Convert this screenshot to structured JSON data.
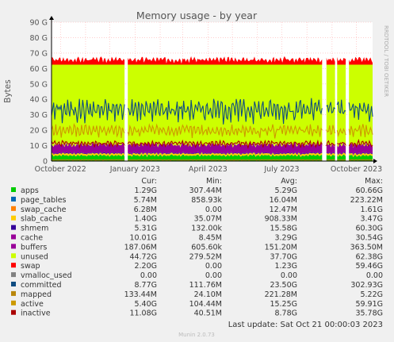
{
  "chart_data": {
    "type": "area",
    "title": "Memory usage - by year",
    "ylabel": "Bytes",
    "xlabel": "",
    "side_label": "RRDTOOL / TOBI OETIKER",
    "ylim": [
      0,
      90
    ],
    "y_unit": "G",
    "y_ticks": [
      "0",
      "10 G",
      "20 G",
      "30 G",
      "40 G",
      "50 G",
      "60 G",
      "70 G",
      "80 G",
      "90 G"
    ],
    "y_tick_values": [
      0,
      10,
      20,
      30,
      40,
      50,
      60,
      70,
      80,
      90
    ],
    "x_ticks": [
      "October 2022",
      "January 2023",
      "April 2023",
      "July 2023",
      "October 2023"
    ],
    "x_tick_dates": [
      "2022-10-01",
      "2023-01-01",
      "2023-04-01",
      "2023-07-01",
      "2023-10-01"
    ],
    "x_range": [
      "2022-09-20",
      "2023-10-21"
    ],
    "grid": true,
    "gaps": [
      [
        "2022-12-20",
        "2022-12-23"
      ],
      [
        "2023-08-20",
        "2023-08-24"
      ],
      [
        "2023-09-05",
        "2023-09-07"
      ],
      [
        "2023-09-19",
        "2023-09-21"
      ]
    ],
    "stacked_series": [
      {
        "name": "apps",
        "color": "#00cc00",
        "base": 2.5,
        "amp": 2.0
      },
      {
        "name": "page_tables",
        "color": "#0066b3",
        "base": 0.02,
        "amp": 0.02
      },
      {
        "name": "swap_cache",
        "color": "#ff8000",
        "base": 0.01,
        "amp": 0.01
      },
      {
        "name": "slab_cache",
        "color": "#ffcc00",
        "base": 0.9,
        "amp": 0.5
      },
      {
        "name": "shmem",
        "color": "#330099",
        "base": 0.3,
        "amp": 0.3
      },
      {
        "name": "cache",
        "color": "#990099",
        "base": 3.5,
        "amp": 3.0
      },
      {
        "name": "buffers",
        "color": "#ccff00",
        "base": 0.15,
        "amp": 0.1
      },
      {
        "name": "unused",
        "color": "#ccff00",
        "fill_to": 62.5
      },
      {
        "name": "swap",
        "color": "#ff0000",
        "base": 0.5,
        "amp": 5.0
      }
    ],
    "line_series": [
      {
        "name": "committed",
        "color": "#0f4c81",
        "base": 23.0,
        "amp": 18.0
      },
      {
        "name": "mapped",
        "color": "#b8860b",
        "base": 0.5,
        "amp": 0.4
      },
      {
        "name": "active",
        "color": "#cc9900",
        "base": 14.0,
        "amp": 10.0
      },
      {
        "name": "inactive",
        "color": "#aa0000",
        "base": 8.5,
        "amp": 5.0
      }
    ]
  },
  "legend": {
    "headers": [
      "Cur:",
      "Min:",
      "Avg:",
      "Max:"
    ],
    "rows": [
      {
        "name": "apps",
        "color": "#00cc00",
        "cur": "1.29G",
        "min": "307.44M",
        "avg": "5.29G",
        "max": "60.66G"
      },
      {
        "name": "page_tables",
        "color": "#0066b3",
        "cur": "5.74M",
        "min": "858.93k",
        "avg": "16.04M",
        "max": "223.22M"
      },
      {
        "name": "swap_cache",
        "color": "#ff8000",
        "cur": "6.28M",
        "min": "0.00",
        "avg": "12.47M",
        "max": "1.61G"
      },
      {
        "name": "slab_cache",
        "color": "#ffcc00",
        "cur": "1.40G",
        "min": "35.07M",
        "avg": "908.33M",
        "max": "3.47G"
      },
      {
        "name": "shmem",
        "color": "#330099",
        "cur": "5.31G",
        "min": "132.00k",
        "avg": "15.58G",
        "max": "60.30G"
      },
      {
        "name": "cache",
        "color": "#990099",
        "cur": "10.01G",
        "min": "8.45M",
        "avg": "3.29G",
        "max": "30.54G"
      },
      {
        "name": "buffers",
        "color": "#990099",
        "cur": "187.06M",
        "min": "605.60k",
        "avg": "151.20M",
        "max": "363.50M"
      },
      {
        "name": "unused",
        "color": "#ccff00",
        "cur": "44.72G",
        "min": "279.52M",
        "avg": "37.70G",
        "max": "62.38G"
      },
      {
        "name": "swap",
        "color": "#ff0000",
        "cur": "2.20G",
        "min": "0.00",
        "avg": "1.23G",
        "max": "59.46G"
      },
      {
        "name": "vmalloc_used",
        "color": "#808080",
        "cur": "0.00",
        "min": "0.00",
        "avg": "0.00",
        "max": "0.00"
      },
      {
        "name": "committed",
        "color": "#0f4c81",
        "cur": "8.77G",
        "min": "111.76M",
        "avg": "23.50G",
        "max": "302.93G"
      },
      {
        "name": "mapped",
        "color": "#b8860b",
        "cur": "133.44M",
        "min": "24.10M",
        "avg": "221.28M",
        "max": "5.22G"
      },
      {
        "name": "active",
        "color": "#cc9900",
        "cur": "5.40G",
        "min": "104.44M",
        "avg": "15.25G",
        "max": "59.91G"
      },
      {
        "name": "inactive",
        "color": "#aa0000",
        "cur": "11.08G",
        "min": "40.51M",
        "avg": "8.78G",
        "max": "35.78G"
      }
    ]
  },
  "footer": {
    "last_update": "Last update: Sat Oct 21 00:00:03 2023",
    "version": "Munin 2.0.73"
  },
  "colors": {
    "background": "#f0f0f0",
    "plot_background": "#ffffff",
    "grid": "#ff9999",
    "axis": "#000000",
    "text": "#555555"
  }
}
